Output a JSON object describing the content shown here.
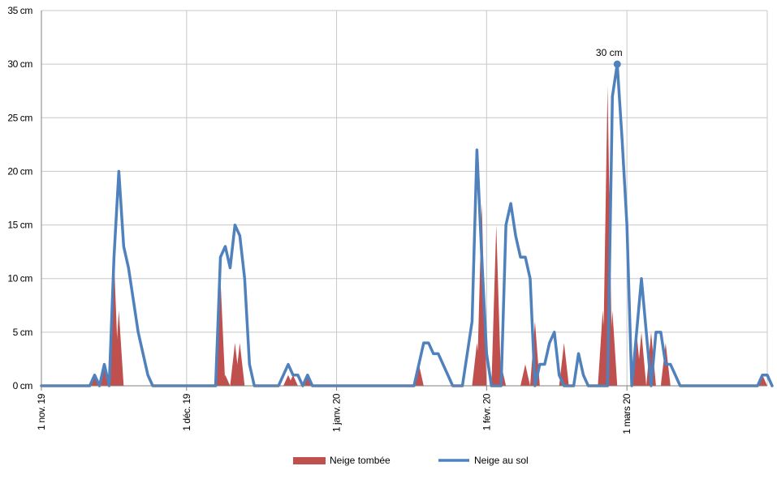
{
  "chart_data": {
    "type": "area+line",
    "x_start": "2019-11-01",
    "x_end": "2020-03-30",
    "ylim": [
      0,
      35
    ],
    "y_ticks": [
      {
        "value": 0,
        "label": "0 cm"
      },
      {
        "value": 5,
        "label": "5 cm"
      },
      {
        "value": 10,
        "label": "10 cm"
      },
      {
        "value": 15,
        "label": "15 cm"
      },
      {
        "value": 20,
        "label": "20 cm"
      },
      {
        "value": 25,
        "label": "25 cm"
      },
      {
        "value": 30,
        "label": "30 cm"
      },
      {
        "value": 35,
        "label": "35 cm"
      }
    ],
    "x_ticks": [
      {
        "date": "2019-11-01",
        "label": "1 nov. 19"
      },
      {
        "date": "2019-12-01",
        "label": "1 déc. 19"
      },
      {
        "date": "2020-01-01",
        "label": "1 janv. 20"
      },
      {
        "date": "2020-02-01",
        "label": "1 févr. 20"
      },
      {
        "date": "2020-03-01",
        "label": "1 mars 20"
      }
    ],
    "grid": true,
    "legend_position": "bottom",
    "series": [
      {
        "name": "Neige tombée",
        "type": "area",
        "color": "#c0504d",
        "points": [
          [
            "2019-11-12",
            1
          ],
          [
            "2019-11-14",
            2
          ],
          [
            "2019-11-16",
            12
          ],
          [
            "2019-11-17",
            7
          ],
          [
            "2019-12-08",
            10
          ],
          [
            "2019-12-09",
            1
          ],
          [
            "2019-12-11",
            4
          ],
          [
            "2019-12-12",
            4
          ],
          [
            "2019-12-22",
            1
          ],
          [
            "2019-12-23",
            1
          ],
          [
            "2019-12-26",
            1
          ],
          [
            "2020-01-18",
            2
          ],
          [
            "2020-01-30",
            4
          ],
          [
            "2020-01-31",
            17
          ],
          [
            "2020-02-03",
            15
          ],
          [
            "2020-02-04",
            2
          ],
          [
            "2020-02-09",
            2
          ],
          [
            "2020-02-11",
            6
          ],
          [
            "2020-02-17",
            4
          ],
          [
            "2020-02-25",
            7
          ],
          [
            "2020-02-26",
            28
          ],
          [
            "2020-02-27",
            7
          ],
          [
            "2020-03-03",
            5
          ],
          [
            "2020-03-04",
            5
          ],
          [
            "2020-03-06",
            5
          ],
          [
            "2020-03-09",
            4
          ],
          [
            "2020-03-29",
            1
          ]
        ]
      },
      {
        "name": "Neige au sol",
        "type": "line",
        "color": "#4f81bd",
        "points": [
          [
            "2019-11-01",
            0
          ],
          [
            "2019-11-11",
            0
          ],
          [
            "2019-11-12",
            1
          ],
          [
            "2019-11-13",
            0
          ],
          [
            "2019-11-14",
            2
          ],
          [
            "2019-11-15",
            0
          ],
          [
            "2019-11-16",
            12
          ],
          [
            "2019-11-17",
            20
          ],
          [
            "2019-11-18",
            13
          ],
          [
            "2019-11-19",
            11
          ],
          [
            "2019-11-20",
            8
          ],
          [
            "2019-11-21",
            5
          ],
          [
            "2019-11-22",
            3
          ],
          [
            "2019-11-23",
            1
          ],
          [
            "2019-11-24",
            0
          ],
          [
            "2019-12-07",
            0
          ],
          [
            "2019-12-08",
            12
          ],
          [
            "2019-12-09",
            13
          ],
          [
            "2019-12-10",
            11
          ],
          [
            "2019-12-11",
            15
          ],
          [
            "2019-12-12",
            14
          ],
          [
            "2019-12-13",
            10
          ],
          [
            "2019-12-14",
            2
          ],
          [
            "2019-12-15",
            0
          ],
          [
            "2019-12-20",
            0
          ],
          [
            "2019-12-22",
            2
          ],
          [
            "2019-12-23",
            1
          ],
          [
            "2019-12-24",
            1
          ],
          [
            "2019-12-25",
            0
          ],
          [
            "2019-12-26",
            1
          ],
          [
            "2019-12-27",
            0
          ],
          [
            "2020-01-17",
            0
          ],
          [
            "2020-01-19",
            4
          ],
          [
            "2020-01-20",
            4
          ],
          [
            "2020-01-21",
            3
          ],
          [
            "2020-01-22",
            3
          ],
          [
            "2020-01-25",
            0
          ],
          [
            "2020-01-27",
            0
          ],
          [
            "2020-01-29",
            6
          ],
          [
            "2020-01-30",
            22
          ],
          [
            "2020-01-31",
            12
          ],
          [
            "2020-02-01",
            3
          ],
          [
            "2020-02-02",
            0
          ],
          [
            "2020-02-04",
            0
          ],
          [
            "2020-02-05",
            15
          ],
          [
            "2020-02-06",
            17
          ],
          [
            "2020-02-07",
            14
          ],
          [
            "2020-02-08",
            12
          ],
          [
            "2020-02-09",
            12
          ],
          [
            "2020-02-10",
            10
          ],
          [
            "2020-02-11",
            0
          ],
          [
            "2020-02-12",
            2
          ],
          [
            "2020-02-13",
            2
          ],
          [
            "2020-02-14",
            4
          ],
          [
            "2020-02-15",
            5
          ],
          [
            "2020-02-16",
            1
          ],
          [
            "2020-02-17",
            0
          ],
          [
            "2020-02-19",
            0
          ],
          [
            "2020-02-20",
            3
          ],
          [
            "2020-02-21",
            1
          ],
          [
            "2020-02-22",
            0
          ],
          [
            "2020-02-26",
            0
          ],
          [
            "2020-02-27",
            27
          ],
          [
            "2020-02-28",
            30
          ],
          [
            "2020-02-29",
            23
          ],
          [
            "2020-03-01",
            15
          ],
          [
            "2020-03-02",
            0
          ],
          [
            "2020-03-03",
            5
          ],
          [
            "2020-03-04",
            10
          ],
          [
            "2020-03-05",
            5
          ],
          [
            "2020-03-06",
            0
          ],
          [
            "2020-03-07",
            5
          ],
          [
            "2020-03-08",
            5
          ],
          [
            "2020-03-09",
            2
          ],
          [
            "2020-03-10",
            2
          ],
          [
            "2020-03-11",
            1
          ],
          [
            "2020-03-12",
            0
          ],
          [
            "2020-03-28",
            0
          ],
          [
            "2020-03-29",
            1
          ],
          [
            "2020-03-30",
            1
          ],
          [
            "2020-03-31",
            0
          ]
        ]
      }
    ],
    "annotations": [
      {
        "date": "2020-02-28",
        "value": 30,
        "text": "30 cm",
        "series": "Neige au sol"
      }
    ]
  }
}
